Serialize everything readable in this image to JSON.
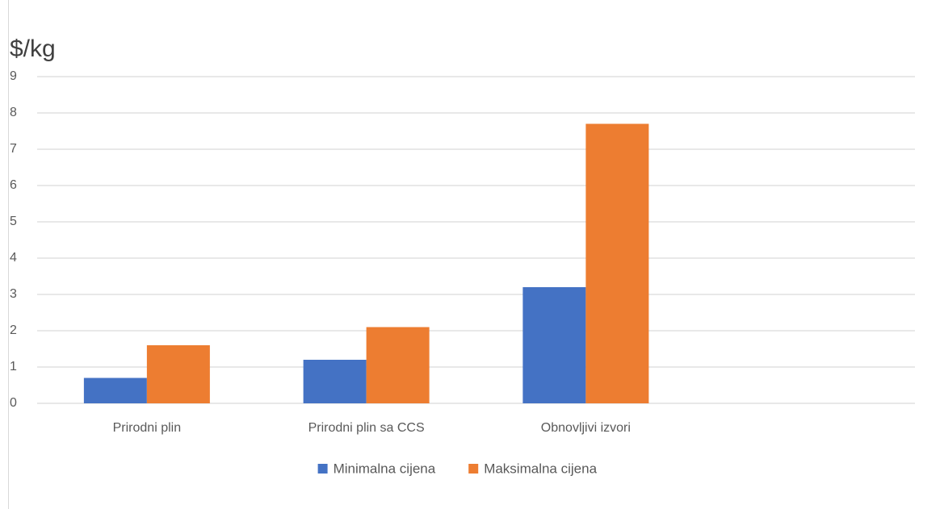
{
  "chart_data": {
    "type": "bar",
    "y_label": "$/kg",
    "categories": [
      "Prirodni plin",
      "Prirodni plin sa CCS",
      "Obnovljivi izvori",
      null
    ],
    "series": [
      {
        "name": "Minimalna cijena",
        "color": "#4472c4",
        "values": [
          0.7,
          1.2,
          3.2,
          null
        ]
      },
      {
        "name": "Maksimalna cijena",
        "color": "#ed7d31",
        "values": [
          1.6,
          2.1,
          7.7,
          null
        ]
      }
    ],
    "ylim": [
      0,
      9
    ],
    "yticks": [
      0,
      1,
      2,
      3,
      4,
      5,
      6,
      7,
      8,
      9
    ],
    "grid": true,
    "legend": "bottom"
  }
}
